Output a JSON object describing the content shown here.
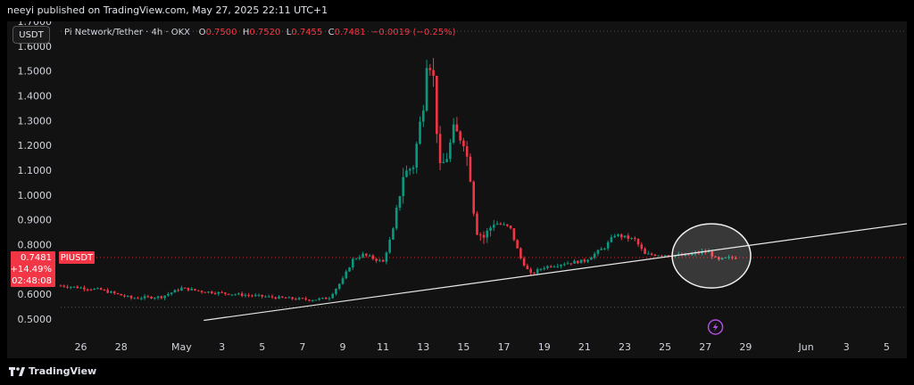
{
  "header": {
    "published": "neeyi published on TradingView.com, May 27, 2025 22:11 UTC+1"
  },
  "toolbar": {
    "symbol_button": "USDT"
  },
  "legend": {
    "title": "Pi Network/Tether · 4h · OKX",
    "o_label": "O",
    "o_value": "0.7500",
    "h_label": "H",
    "h_value": "0.7520",
    "l_label": "L",
    "l_value": "0.7455",
    "c_label": "C",
    "c_value": "0.7481",
    "change": "−0.0019 (−0.25%)"
  },
  "price_badge": {
    "price": "0.7481",
    "symbol": "PIUSDT",
    "change_pct": "+14.49%",
    "countdown": "02:48:08"
  },
  "footer": {
    "brand": "TradingView"
  },
  "colors": {
    "up": "#089981",
    "down": "#f23645",
    "background": "#121212",
    "axis_text": "#d1d4dc"
  },
  "icons": {
    "event_marker": "lightning-icon",
    "brand_logo": "tradingview-logo-icon"
  },
  "chart_data": {
    "type": "candlestick",
    "ylim": [
      0.45,
      1.7
    ],
    "yticks": [
      "0.5000",
      "0.6000",
      "0.7000",
      "0.8000",
      "0.9000",
      "1.0000",
      "1.1000",
      "1.2000",
      "1.3000",
      "1.4000",
      "1.5000",
      "1.6000",
      "1.7000"
    ],
    "xticks": [
      {
        "label": "26",
        "day": -5
      },
      {
        "label": "28",
        "day": -3
      },
      {
        "label": "May",
        "day": 0
      },
      {
        "label": "3",
        "day": 2
      },
      {
        "label": "5",
        "day": 4
      },
      {
        "label": "7",
        "day": 6
      },
      {
        "label": "9",
        "day": 8
      },
      {
        "label": "11",
        "day": 10
      },
      {
        "label": "13",
        "day": 12
      },
      {
        "label": "15",
        "day": 14
      },
      {
        "label": "17",
        "day": 16
      },
      {
        "label": "19",
        "day": 18
      },
      {
        "label": "21",
        "day": 20
      },
      {
        "label": "23",
        "day": 22
      },
      {
        "label": "25",
        "day": 24
      },
      {
        "label": "27",
        "day": 26
      },
      {
        "label": "29",
        "day": 28
      },
      {
        "label": "Jun",
        "day": 31
      },
      {
        "label": "3",
        "day": 33
      },
      {
        "label": "5",
        "day": 35
      }
    ],
    "xlim": [
      -6,
      36
    ],
    "last_price": 0.7481,
    "high_line": 1.66,
    "low_line": 0.548,
    "trendline": {
      "from": {
        "day": 1.1,
        "price": 0.495
      },
      "to": {
        "day": 36.5,
        "price": 0.89
      }
    },
    "circle": {
      "day": 26.3,
      "price": 0.755
    },
    "event_day": 26.5,
    "anchors": [
      [
        -6,
        0.635
      ],
      [
        -4,
        0.618
      ],
      [
        -2.5,
        0.585
      ],
      [
        -1,
        0.59
      ],
      [
        0,
        0.625
      ],
      [
        1,
        0.612
      ],
      [
        3,
        0.598
      ],
      [
        5,
        0.585
      ],
      [
        6.5,
        0.578
      ],
      [
        7.3,
        0.585
      ],
      [
        8,
        0.66
      ],
      [
        8.5,
        0.74
      ],
      [
        9,
        0.76
      ],
      [
        10,
        0.73
      ],
      [
        10.5,
        0.86
      ],
      [
        11,
        1.08
      ],
      [
        11.5,
        1.12
      ],
      [
        12,
        1.37
      ],
      [
        12.2,
        1.58
      ],
      [
        12.5,
        1.47
      ],
      [
        12.8,
        1.1
      ],
      [
        13.2,
        1.16
      ],
      [
        13.5,
        1.26
      ],
      [
        14,
        1.22
      ],
      [
        14.3,
        1.1
      ],
      [
        14.6,
        0.86
      ],
      [
        15,
        0.83
      ],
      [
        15.5,
        0.89
      ],
      [
        16.3,
        0.87
      ],
      [
        16.8,
        0.75
      ],
      [
        17.3,
        0.68
      ],
      [
        18,
        0.71
      ],
      [
        19,
        0.725
      ],
      [
        20,
        0.735
      ],
      [
        21,
        0.79
      ],
      [
        21.5,
        0.84
      ],
      [
        22.5,
        0.82
      ],
      [
        23,
        0.76
      ],
      [
        24,
        0.76
      ],
      [
        25,
        0.755
      ],
      [
        25.8,
        0.77
      ],
      [
        26.2,
        0.77
      ],
      [
        26.6,
        0.735
      ],
      [
        27.0,
        0.745
      ],
      [
        27.5,
        0.748
      ]
    ]
  }
}
